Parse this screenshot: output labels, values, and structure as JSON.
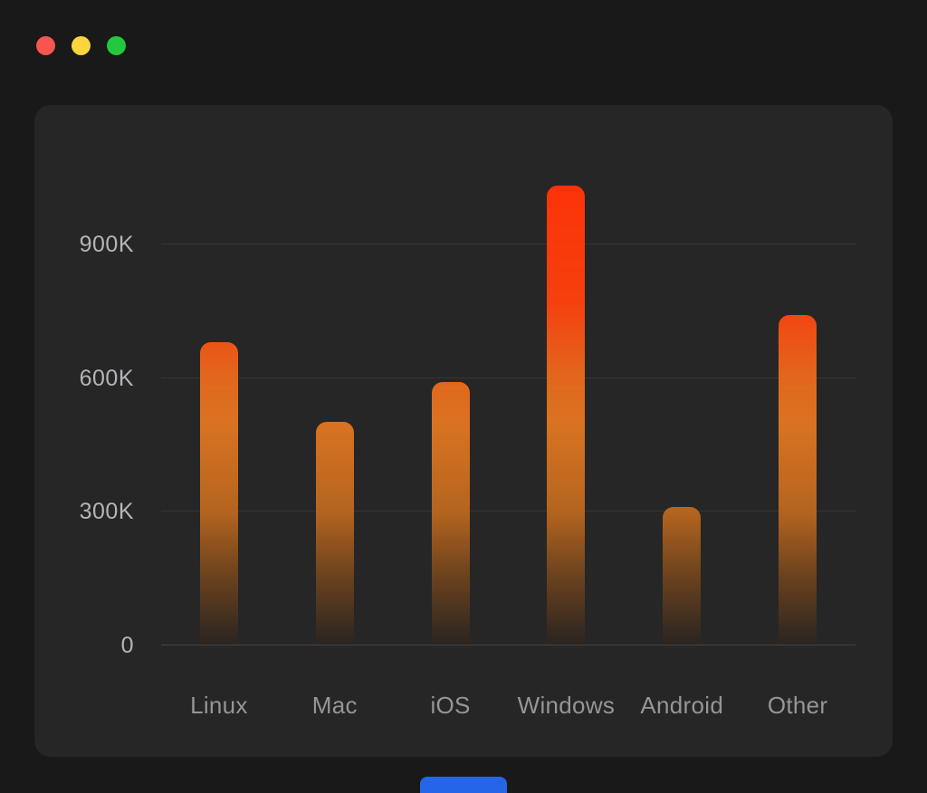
{
  "theme": {
    "background": "#191919",
    "panel": "#262626",
    "grid_color": "rgba(255,255,255,0.07)",
    "axis_color": "rgba(255,255,255,0.14)",
    "tick_color": "#b4b4b9",
    "label_color": "#95959a"
  },
  "window": {
    "controls": [
      {
        "name": "close",
        "color": "#f85550"
      },
      {
        "name": "minimize",
        "color": "#fcd43c"
      },
      {
        "name": "zoom",
        "color": "#22c93e"
      }
    ]
  },
  "chart_data": {
    "type": "bar",
    "title": "",
    "xlabel": "",
    "ylabel": "",
    "categories": [
      "Linux",
      "Mac",
      "iOS",
      "Windows",
      "Android",
      "Other"
    ],
    "values": [
      680000,
      500000,
      590000,
      1030000,
      310000,
      740000
    ],
    "unit": "K",
    "yticks": [
      0,
      300000,
      600000,
      900000
    ],
    "ytick_labels": [
      "0",
      "300K",
      "600K",
      "900K"
    ],
    "ylim": [
      0,
      1100000
    ],
    "grid": true,
    "legend": false,
    "bar_gradient": [
      {
        "pos": 0.0,
        "color": "#2a2420"
      },
      {
        "pos": 0.14,
        "color": "#6b421e"
      },
      {
        "pos": 0.27,
        "color": "#b4641f"
      },
      {
        "pos": 0.45,
        "color": "#d97321"
      },
      {
        "pos": 0.55,
        "color": "#e2661c"
      },
      {
        "pos": 0.64,
        "color": "#ee4f15"
      },
      {
        "pos": 0.7,
        "color": "#f5400d"
      },
      {
        "pos": 1.0,
        "color": "#ff2f07"
      }
    ]
  },
  "bottom_tab": {
    "color": "#2566e8"
  }
}
